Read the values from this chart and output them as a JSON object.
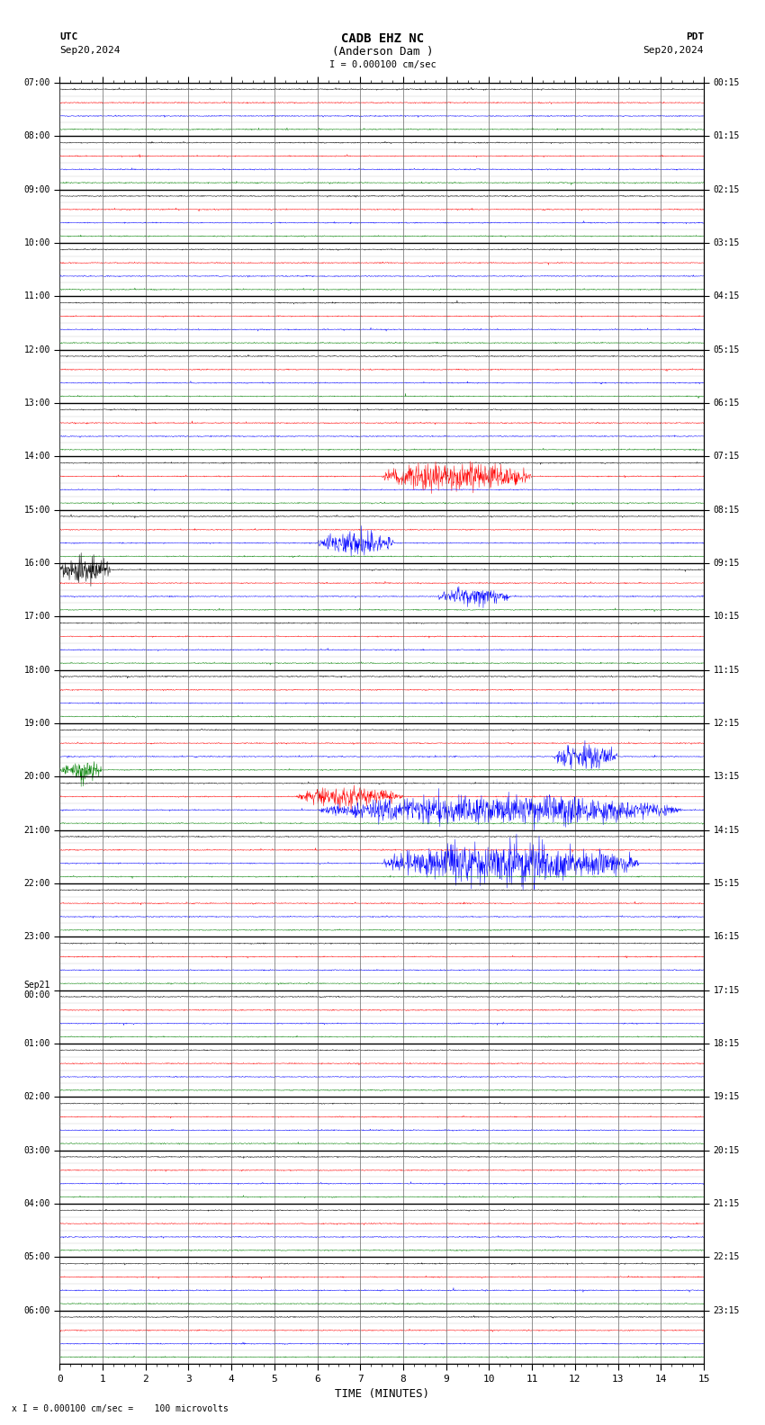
{
  "title_line1": "CADB EHZ NC",
  "title_line2": "(Anderson Dam )",
  "title_line3": "I = 0.000100 cm/sec",
  "left_label_top": "UTC",
  "left_label_date": "Sep20,2024",
  "right_label_top": "PDT",
  "right_label_date": "Sep20,2024",
  "xlabel": "TIME (MINUTES)",
  "footer": "x I = 0.000100 cm/sec =    100 microvolts",
  "utc_labels": [
    "07:00",
    "08:00",
    "09:00",
    "10:00",
    "11:00",
    "12:00",
    "13:00",
    "14:00",
    "15:00",
    "16:00",
    "17:00",
    "18:00",
    "19:00",
    "20:00",
    "21:00",
    "22:00",
    "23:00",
    "Sep21\n00:00",
    "01:00",
    "02:00",
    "03:00",
    "04:00",
    "05:00",
    "06:00"
  ],
  "pdt_labels": [
    "00:15",
    "01:15",
    "02:15",
    "03:15",
    "04:15",
    "05:15",
    "06:15",
    "07:15",
    "08:15",
    "09:15",
    "10:15",
    "11:15",
    "12:15",
    "13:15",
    "14:15",
    "15:15",
    "16:15",
    "17:15",
    "18:15",
    "19:15",
    "20:15",
    "21:15",
    "22:15",
    "23:15"
  ],
  "trace_colors": [
    "black",
    "red",
    "blue",
    "green"
  ],
  "num_groups": 24,
  "traces_per_group": 4,
  "xmin": 0,
  "xmax": 15,
  "background_color": "#ffffff",
  "noise_scale": 0.06,
  "special_events": [
    {
      "group": 7,
      "trace": 1,
      "color": "blue",
      "xstart": 7.5,
      "xend": 11.0,
      "amplitude": 2.5
    },
    {
      "group": 8,
      "trace": 2,
      "color": "green",
      "xstart": 6.0,
      "xend": 7.8,
      "amplitude": 2.0
    },
    {
      "group": 9,
      "trace": 0,
      "color": "black",
      "xstart": 0.0,
      "xend": 1.2,
      "amplitude": 2.5
    },
    {
      "group": 9,
      "trace": 2,
      "color": "black",
      "xstart": 8.8,
      "xend": 10.5,
      "amplitude": 1.5
    },
    {
      "group": 12,
      "trace": 2,
      "color": "green",
      "xstart": 11.5,
      "xend": 13.0,
      "amplitude": 2.0
    },
    {
      "group": 12,
      "trace": 3,
      "color": "black",
      "xstart": 0.0,
      "xend": 1.0,
      "amplitude": 2.0
    },
    {
      "group": 13,
      "trace": 1,
      "color": "black",
      "xstart": 5.5,
      "xend": 8.0,
      "amplitude": 1.8
    },
    {
      "group": 13,
      "trace": 2,
      "color": "blue",
      "xstart": 6.0,
      "xend": 14.5,
      "amplitude": 2.5
    },
    {
      "group": 14,
      "trace": 2,
      "color": "blue",
      "xstart": 7.5,
      "xend": 13.5,
      "amplitude": 3.5
    }
  ]
}
